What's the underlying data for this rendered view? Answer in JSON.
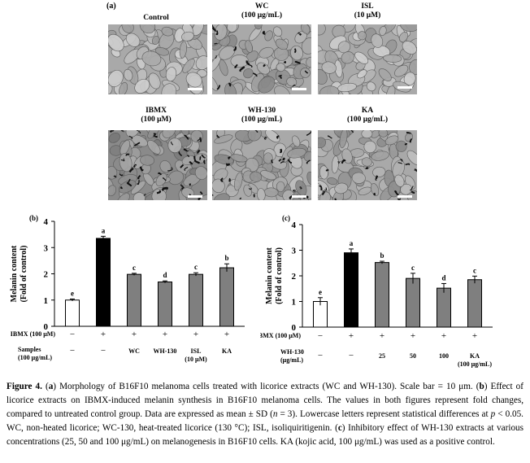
{
  "panel_a": {
    "label": "(a)",
    "images": [
      {
        "name": "Control",
        "conc": ""
      },
      {
        "name": "WC",
        "conc": "(100 μg/mL)"
      },
      {
        "name": "ISL",
        "conc": "(10 μM)"
      },
      {
        "name": "IBMX",
        "conc": "(100 μM)"
      },
      {
        "name": "WH-130",
        "conc": "(100 μg/mL)"
      },
      {
        "name": "KA",
        "conc": "(100 μg/mL)"
      }
    ]
  },
  "chart_data": [
    {
      "panel": "(b)",
      "type": "bar",
      "ylabel_line1": "Melanin content",
      "ylabel_line2": "(Fold of control)",
      "ylim": [
        0,
        4
      ],
      "yticks": [
        "0",
        "1",
        "2",
        "3",
        "4"
      ],
      "bars": [
        {
          "value": 1.0,
          "error": 0.04,
          "letter": "e",
          "color": "#ffffff",
          "ibmx": "−",
          "sample": "−",
          "sample2": ""
        },
        {
          "value": 3.35,
          "error": 0.08,
          "letter": "a",
          "color": "#000000",
          "ibmx": "+",
          "sample": "−",
          "sample2": ""
        },
        {
          "value": 1.98,
          "error": 0.04,
          "letter": "c",
          "color": "#7f7f7f",
          "ibmx": "+",
          "sample": "WC",
          "sample2": ""
        },
        {
          "value": 1.69,
          "error": 0.04,
          "letter": "d",
          "color": "#7f7f7f",
          "ibmx": "+",
          "sample": "WH-130",
          "sample2": ""
        },
        {
          "value": 1.98,
          "error": 0.06,
          "letter": "c",
          "color": "#7f7f7f",
          "ibmx": "+",
          "sample": "ISL",
          "sample2": "(10 μM)"
        },
        {
          "value": 2.23,
          "error": 0.15,
          "letter": "b",
          "color": "#7f7f7f",
          "ibmx": "+",
          "sample": "KA",
          "sample2": ""
        }
      ],
      "row1_label": "IBMX (100 μM)",
      "row2_label_line1": "Samples",
      "row2_label_line2": "(100 μg/mL)"
    },
    {
      "panel": "(c)",
      "type": "bar",
      "ylabel_line1": "Melanin content",
      "ylabel_line2": "(Fold of control)",
      "ylim": [
        0,
        4
      ],
      "yticks": [
        "0",
        "1",
        "2",
        "3",
        "4"
      ],
      "bars": [
        {
          "value": 1.0,
          "error": 0.15,
          "letter": "e",
          "color": "#ffffff",
          "ibmx": "−",
          "sample": "−",
          "sample2": ""
        },
        {
          "value": 2.9,
          "error": 0.15,
          "letter": "a",
          "color": "#000000",
          "ibmx": "+",
          "sample": "−",
          "sample2": ""
        },
        {
          "value": 2.52,
          "error": 0.05,
          "letter": "b",
          "color": "#7f7f7f",
          "ibmx": "+",
          "sample": "25",
          "sample2": ""
        },
        {
          "value": 1.9,
          "error": 0.2,
          "letter": "c",
          "color": "#7f7f7f",
          "ibmx": "+",
          "sample": "50",
          "sample2": ""
        },
        {
          "value": 1.52,
          "error": 0.18,
          "letter": "d",
          "color": "#7f7f7f",
          "ibmx": "+",
          "sample": "100",
          "sample2": ""
        },
        {
          "value": 1.85,
          "error": 0.14,
          "letter": "c",
          "color": "#7f7f7f",
          "ibmx": "+",
          "sample": "KA",
          "sample2": "(100 μg/mL)"
        }
      ],
      "row1_label": "IBMX (100 μM)",
      "row2_label_line1": "WH-130",
      "row2_label_line2": "(μg/mL)"
    }
  ],
  "caption": {
    "title": "Figure 4.",
    "text_html": "(<b>a</b>) Morphology of B16F10 melanoma cells treated with licorice extracts (WC and WH-130). Scale bar = 10 μm. (<b>b</b>) Effect of licorice extracts on IBMX-induced melanin synthesis in B16F10 melanoma cells. The values in both figures represent fold changes, compared to untreated control group. Data are expressed as mean ± SD (<i>n</i> = 3). Lowercase letters represent statistical differences at <i>p</i> &lt; 0.05. WC, non-heated licorice; WC-130, heat-treated licorice (130 °C); ISL, isoliquiritigenin. (<b>c</b>) Inhibitory effect of WH-130 extracts at various concentrations (25, 50 and 100 μg/mL) on melanogenesis in B16F10 cells. KA (kojic acid, 100 μg/mL) was used as a positive control."
  }
}
